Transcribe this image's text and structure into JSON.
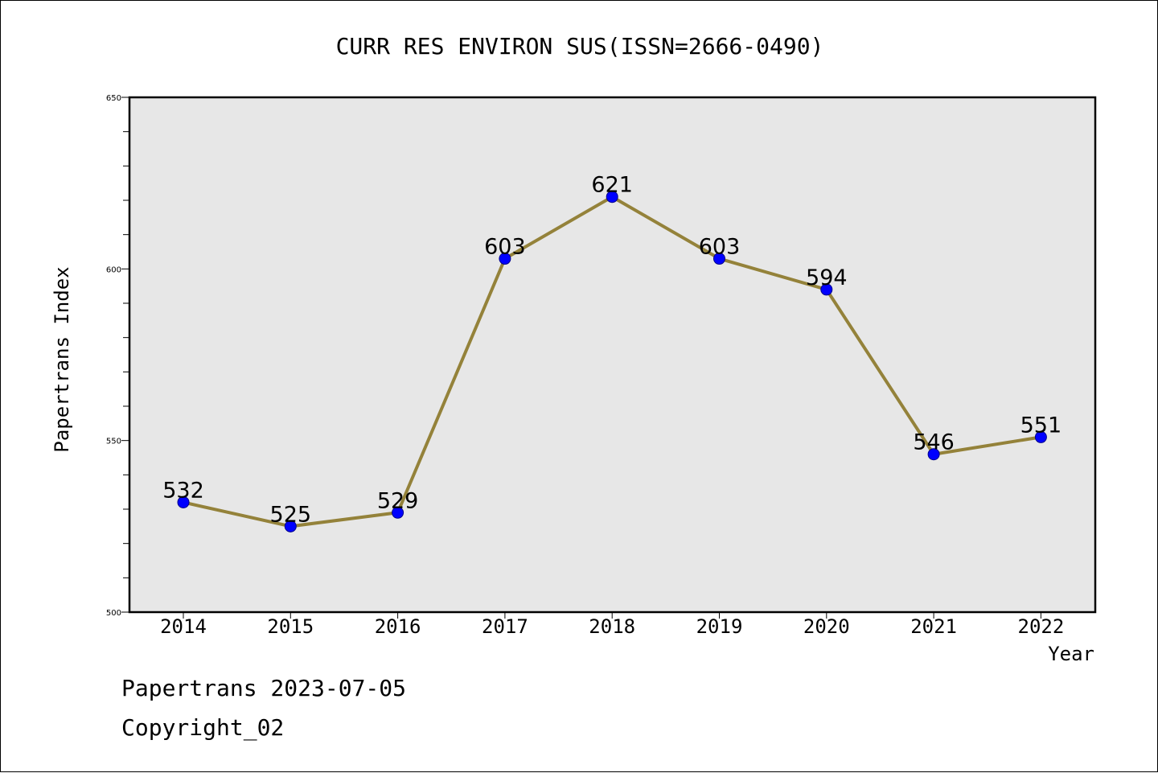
{
  "chart_data": {
    "type": "line",
    "title": "CURR RES ENVIRON SUS(ISSN=2666-0490)",
    "xlabel": "Year",
    "ylabel": "Papertrans Index",
    "categories": [
      "2014",
      "2015",
      "2016",
      "2017",
      "2018",
      "2019",
      "2020",
      "2021",
      "2022"
    ],
    "values": [
      532,
      525,
      529,
      603,
      621,
      603,
      594,
      546,
      551
    ],
    "data_labels": [
      "532",
      "525",
      "529",
      "603",
      "621",
      "603",
      "594",
      "546",
      "551"
    ],
    "ylim": [
      500,
      650
    ],
    "yticks": [
      "500",
      "550",
      "600",
      "650"
    ],
    "ytick_values": [
      500,
      550,
      600,
      650
    ],
    "minor_tick_step": 10,
    "grid": false,
    "colors": {
      "plot_background": "#e7e7e7",
      "line": "#94823a",
      "marker": "#0000ff",
      "marker_edge": "#00008b"
    }
  },
  "footer": {
    "date_text": "Papertrans 2023-07-05",
    "copyright_text": "Copyright_02"
  }
}
